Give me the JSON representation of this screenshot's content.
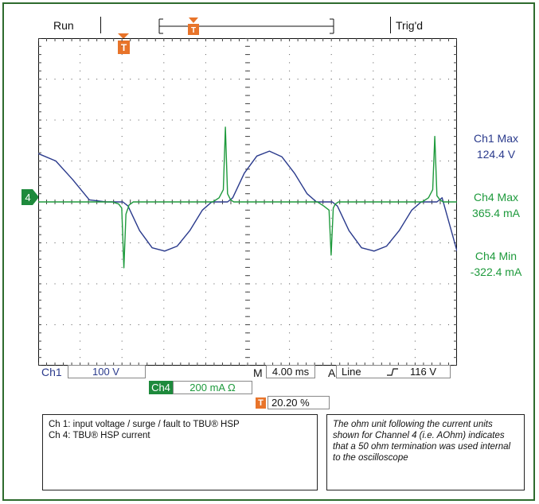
{
  "status": {
    "run": "Run",
    "trig": "Trig'd",
    "trigger_marker": "T"
  },
  "measurements": {
    "ch1_max_label": "Ch1 Max",
    "ch1_max_value": "124.4 V",
    "ch4_max_label": "Ch4 Max",
    "ch4_max_value": "365.4 mA",
    "ch4_min_label": "Ch4 Min",
    "ch4_min_value": "-322.4 mA"
  },
  "settings": {
    "ch1_label": "Ch1",
    "ch1_scale": "100 V",
    "ch4_label": "Ch4",
    "ch4_scale": "200 mA Ω",
    "m_label": "M",
    "timebase": "4.00 ms",
    "a_label": "A",
    "trigger_source": "Line",
    "trigger_level": "116 V",
    "trigger_pos_label": "T",
    "trigger_pos": "20.20 %",
    "ch4_marker": "4"
  },
  "notes": {
    "left_line1": "Ch 1:  input voltage / surge / fault to TBU® HSP",
    "left_line2": "Ch 4:  TBU® HSP current",
    "right": "The ohm unit following the current units shown for Channel 4 (i.e. AOhm) indicates that a 50 ohm termination was used internal to the oscilloscope"
  },
  "colors": {
    "ch1": "#2a3a8c",
    "ch4": "#1e9a3c",
    "trigger": "#e8742a",
    "frame": "#2e6b2e"
  },
  "chart_data": {
    "type": "line",
    "title": "",
    "xlabel": "",
    "ylabel": "",
    "x_unit": "ms",
    "xlim": [
      -8.08,
      31.92
    ],
    "divisions": {
      "x": 10,
      "y": 8
    },
    "grid": true,
    "series": [
      {
        "name": "Ch1",
        "unit": "V",
        "scale_per_div": 100,
        "offset_div": 0,
        "x": [
          -8.08,
          -6.4,
          -4.8,
          -3.2,
          -1.6,
          -0.9,
          -0.5,
          0,
          0.5,
          1.6,
          2.8,
          4.0,
          5.2,
          6.4,
          7.6,
          8.5,
          9.1,
          9.6,
          10.0,
          10.5,
          11.6,
          12.8,
          14.0,
          15.2,
          16.4,
          17.6,
          18.5,
          19.1,
          19.6,
          20.0,
          20.5,
          21.6,
          22.8,
          24.0,
          25.2,
          26.4,
          27.6,
          28.5,
          29.1,
          29.6,
          30.0,
          30.5,
          31.92
        ],
        "y": [
          118,
          100,
          55,
          5,
          0,
          0,
          0,
          0,
          -10,
          -70,
          -112,
          -120,
          -108,
          -70,
          -20,
          0,
          0,
          0,
          0,
          10,
          70,
          112,
          124,
          110,
          70,
          20,
          0,
          0,
          0,
          0,
          -10,
          -70,
          -112,
          -120,
          -108,
          -70,
          -20,
          0,
          0,
          0,
          0,
          10,
          -120
        ]
      },
      {
        "name": "Ch4",
        "unit": "mA",
        "scale_per_div": 200,
        "offset_div": 0,
        "x": [
          -8.08,
          -1.0,
          -0.4,
          -0.1,
          0.1,
          0.3,
          0.6,
          1.0,
          8.6,
          9.2,
          9.6,
          9.8,
          10.0,
          10.3,
          10.6,
          11.0,
          18.6,
          19.2,
          19.7,
          19.9,
          20.1,
          20.3,
          20.6,
          21.0,
          28.6,
          29.2,
          29.6,
          29.8,
          30.0,
          30.3,
          30.6,
          31.0,
          31.92
        ],
        "y": [
          0,
          0,
          -10,
          -30,
          -322,
          -60,
          -15,
          0,
          0,
          20,
          60,
          365,
          40,
          10,
          0,
          0,
          0,
          -20,
          -40,
          -260,
          -30,
          -10,
          0,
          0,
          0,
          20,
          60,
          320,
          30,
          10,
          0,
          0,
          0
        ]
      }
    ]
  }
}
